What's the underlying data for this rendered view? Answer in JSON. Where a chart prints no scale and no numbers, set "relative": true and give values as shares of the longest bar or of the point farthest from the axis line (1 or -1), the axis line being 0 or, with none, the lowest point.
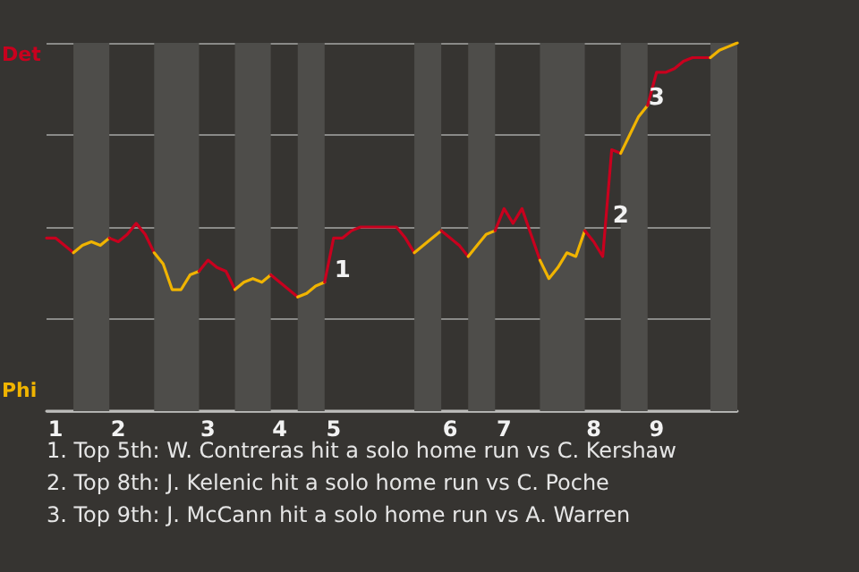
{
  "chart_data": {
    "type": "line",
    "relative": true,
    "categories": [
      null,
      "1",
      null,
      null,
      null,
      null,
      null,
      null,
      "2",
      null,
      null,
      null,
      null,
      null,
      null,
      null,
      null,
      null,
      "3",
      null,
      null,
      null,
      null,
      null,
      null,
      null,
      "4",
      null,
      null,
      null,
      null,
      null,
      "5",
      null,
      null,
      null,
      null,
      null,
      null,
      null,
      null,
      null,
      null,
      null,
      null,
      "6",
      null,
      null,
      null,
      null,
      null,
      "7",
      null,
      null,
      null,
      null,
      null,
      null,
      null,
      null,
      null,
      "8",
      null,
      null,
      null,
      null,
      null,
      null,
      "9",
      null,
      null,
      null,
      null,
      null,
      null,
      null,
      null,
      null
    ],
    "series": [
      {
        "color": "#c8001e",
        "values": [
          0.47,
          0.47,
          0.45,
          0.43,
          null,
          null,
          null,
          null,
          null,
          null,
          null,
          null,
          null,
          null,
          null,
          null,
          null,
          null,
          null,
          null,
          null,
          null,
          null,
          null,
          null,
          null,
          null,
          null,
          null,
          null,
          null,
          null,
          null,
          null,
          null,
          null,
          null,
          null,
          null,
          null,
          null,
          null,
          null,
          null,
          null,
          null,
          null,
          null,
          null,
          null,
          null,
          null,
          null,
          null,
          null,
          null,
          null,
          null,
          null,
          null,
          null,
          null,
          null,
          null,
          null,
          null,
          null,
          null,
          null,
          null,
          null,
          null,
          null,
          null,
          null,
          null,
          null,
          null
        ]
      },
      {
        "color": "#f0b400",
        "values": [
          null,
          null,
          null,
          0.43,
          0.45,
          0.46,
          0.45,
          0.47,
          null,
          null,
          null,
          null,
          null,
          null,
          null,
          null,
          null,
          null,
          null,
          null,
          null,
          null,
          null,
          null,
          null,
          null,
          null,
          null,
          null,
          null,
          null,
          null,
          null,
          null,
          null,
          null,
          null,
          null,
          null,
          null,
          null,
          null,
          null,
          null,
          null,
          null,
          null,
          null,
          null,
          null,
          null,
          null,
          null,
          null,
          null,
          null,
          null,
          null,
          null,
          null,
          null,
          null,
          null,
          null,
          null,
          null,
          null,
          null,
          null,
          null,
          null,
          null,
          null,
          null,
          null,
          null,
          null,
          null
        ]
      },
      {
        "color": "#c8001e",
        "values": [
          null,
          null,
          null,
          null,
          null,
          null,
          null,
          0.47,
          0.46,
          0.48,
          0.51,
          0.48,
          0.43,
          null,
          null,
          null,
          null,
          null,
          null,
          null,
          null,
          null,
          null,
          null,
          null,
          null,
          null,
          null,
          null,
          null,
          null,
          null,
          null,
          null,
          null,
          null,
          null,
          null,
          null,
          null,
          null,
          null,
          null,
          null,
          null,
          null,
          null,
          null,
          null,
          null,
          null,
          null,
          null,
          null,
          null,
          null,
          null,
          null,
          null,
          null,
          null,
          null,
          null,
          null,
          null,
          null,
          null,
          null,
          null,
          null,
          null,
          null,
          null,
          null,
          null,
          null,
          null,
          null
        ]
      },
      {
        "color": "#f0b400",
        "values": [
          null,
          null,
          null,
          null,
          null,
          null,
          null,
          null,
          null,
          null,
          null,
          null,
          0.43,
          0.4,
          0.33,
          0.33,
          0.37,
          0.38,
          null,
          null,
          null,
          null,
          null,
          null,
          null,
          null,
          null,
          null,
          null,
          null,
          null,
          null,
          null,
          null,
          null,
          null,
          null,
          null,
          null,
          null,
          null,
          null,
          null,
          null,
          null,
          null,
          null,
          null,
          null,
          null,
          null,
          null,
          null,
          null,
          null,
          null,
          null,
          null,
          null,
          null,
          null,
          null,
          null,
          null,
          null,
          null,
          null,
          null,
          null,
          null,
          null,
          null,
          null,
          null,
          null,
          null,
          null,
          null
        ]
      },
      {
        "color": "#c8001e",
        "values": [
          null,
          null,
          null,
          null,
          null,
          null,
          null,
          null,
          null,
          null,
          null,
          null,
          null,
          null,
          null,
          null,
          null,
          0.38,
          0.41,
          0.39,
          0.38,
          0.33,
          null,
          null,
          null,
          null,
          null,
          null,
          null,
          null,
          null,
          null,
          null,
          null,
          null,
          null,
          null,
          null,
          null,
          null,
          null,
          null,
          null,
          null,
          null,
          null,
          null,
          null,
          null,
          null,
          null,
          null,
          null,
          null,
          null,
          null,
          null,
          null,
          null,
          null,
          null,
          null,
          null,
          null,
          null,
          null,
          null,
          null,
          null,
          null,
          null,
          null,
          null,
          null,
          null,
          null,
          null,
          null
        ]
      },
      {
        "color": "#f0b400",
        "values": [
          null,
          null,
          null,
          null,
          null,
          null,
          null,
          null,
          null,
          null,
          null,
          null,
          null,
          null,
          null,
          null,
          null,
          null,
          null,
          null,
          null,
          0.33,
          0.35,
          0.36,
          0.35,
          0.37,
          null,
          null,
          null,
          null,
          null,
          null,
          null,
          null,
          null,
          null,
          null,
          null,
          null,
          null,
          null,
          null,
          null,
          null,
          null,
          null,
          null,
          null,
          null,
          null,
          null,
          null,
          null,
          null,
          null,
          null,
          null,
          null,
          null,
          null,
          null,
          null,
          null,
          null,
          null,
          null,
          null,
          null,
          null,
          null,
          null,
          null,
          null,
          null,
          null,
          null,
          null,
          null
        ]
      },
      {
        "color": "#c8001e",
        "values": [
          null,
          null,
          null,
          null,
          null,
          null,
          null,
          null,
          null,
          null,
          null,
          null,
          null,
          null,
          null,
          null,
          null,
          null,
          null,
          null,
          null,
          null,
          null,
          null,
          null,
          0.37,
          0.35,
          0.33,
          0.31,
          null,
          null,
          null,
          null,
          null,
          null,
          null,
          null,
          null,
          null,
          null,
          null,
          null,
          null,
          null,
          null,
          null,
          null,
          null,
          null,
          null,
          null,
          null,
          null,
          null,
          null,
          null,
          null,
          null,
          null,
          null,
          null,
          null,
          null,
          null,
          null,
          null,
          null,
          null,
          null,
          null,
          null,
          null,
          null,
          null,
          null,
          null,
          null,
          null
        ]
      },
      {
        "color": "#f0b400",
        "values": [
          null,
          null,
          null,
          null,
          null,
          null,
          null,
          null,
          null,
          null,
          null,
          null,
          null,
          null,
          null,
          null,
          null,
          null,
          null,
          null,
          null,
          null,
          null,
          null,
          null,
          null,
          null,
          null,
          0.31,
          0.32,
          0.34,
          0.35,
          null,
          null,
          null,
          null,
          null,
          null,
          null,
          null,
          null,
          null,
          null,
          null,
          null,
          null,
          null,
          null,
          null,
          null,
          null,
          null,
          null,
          null,
          null,
          null,
          null,
          null,
          null,
          null,
          null,
          null,
          null,
          null,
          null,
          null,
          null,
          null,
          null,
          null,
          null,
          null,
          null,
          null,
          null,
          null,
          null,
          null
        ]
      },
      {
        "color": "#c8001e",
        "values": [
          null,
          null,
          null,
          null,
          null,
          null,
          null,
          null,
          null,
          null,
          null,
          null,
          null,
          null,
          null,
          null,
          null,
          null,
          null,
          null,
          null,
          null,
          null,
          null,
          null,
          null,
          null,
          null,
          null,
          null,
          null,
          0.35,
          0.47,
          0.47,
          0.49,
          0.5,
          0.5,
          0.5,
          0.5,
          0.5,
          0.47,
          0.43,
          null,
          null,
          null,
          null,
          null,
          null,
          null,
          null,
          null,
          null,
          null,
          null,
          null,
          null,
          null,
          null,
          null,
          null,
          null,
          null,
          null,
          null,
          null,
          null,
          null,
          null,
          null,
          null,
          null,
          null,
          null,
          null,
          null,
          null,
          null,
          null
        ]
      },
      {
        "color": "#f0b400",
        "values": [
          null,
          null,
          null,
          null,
          null,
          null,
          null,
          null,
          null,
          null,
          null,
          null,
          null,
          null,
          null,
          null,
          null,
          null,
          null,
          null,
          null,
          null,
          null,
          null,
          null,
          null,
          null,
          null,
          null,
          null,
          null,
          null,
          null,
          null,
          null,
          null,
          null,
          null,
          null,
          null,
          null,
          0.43,
          0.45,
          0.47,
          0.49,
          null,
          null,
          null,
          null,
          null,
          null,
          null,
          null,
          null,
          null,
          null,
          null,
          null,
          null,
          null,
          null,
          null,
          null,
          null,
          null,
          null,
          null,
          null,
          null,
          null,
          null,
          null,
          null,
          null,
          null,
          null,
          null,
          null
        ]
      },
      {
        "color": "#c8001e",
        "values": [
          null,
          null,
          null,
          null,
          null,
          null,
          null,
          null,
          null,
          null,
          null,
          null,
          null,
          null,
          null,
          null,
          null,
          null,
          null,
          null,
          null,
          null,
          null,
          null,
          null,
          null,
          null,
          null,
          null,
          null,
          null,
          null,
          null,
          null,
          null,
          null,
          null,
          null,
          null,
          null,
          null,
          null,
          null,
          null,
          0.49,
          0.47,
          0.45,
          0.42,
          null,
          null,
          null,
          null,
          null,
          null,
          null,
          null,
          null,
          null,
          null,
          null,
          null,
          null,
          null,
          null,
          null,
          null,
          null,
          null,
          null,
          null,
          null,
          null,
          null,
          null,
          null,
          null,
          null,
          null
        ]
      },
      {
        "color": "#f0b400",
        "values": [
          null,
          null,
          null,
          null,
          null,
          null,
          null,
          null,
          null,
          null,
          null,
          null,
          null,
          null,
          null,
          null,
          null,
          null,
          null,
          null,
          null,
          null,
          null,
          null,
          null,
          null,
          null,
          null,
          null,
          null,
          null,
          null,
          null,
          null,
          null,
          null,
          null,
          null,
          null,
          null,
          null,
          null,
          null,
          null,
          null,
          null,
          null,
          0.42,
          0.45,
          0.48,
          0.49,
          null,
          null,
          null,
          null,
          null,
          null,
          null,
          null,
          null,
          null,
          null,
          null,
          null,
          null,
          null,
          null,
          null,
          null,
          null,
          null,
          null,
          null,
          null,
          null,
          null,
          null,
          null
        ]
      },
      {
        "color": "#c8001e",
        "values": [
          null,
          null,
          null,
          null,
          null,
          null,
          null,
          null,
          null,
          null,
          null,
          null,
          null,
          null,
          null,
          null,
          null,
          null,
          null,
          null,
          null,
          null,
          null,
          null,
          null,
          null,
          null,
          null,
          null,
          null,
          null,
          null,
          null,
          null,
          null,
          null,
          null,
          null,
          null,
          null,
          null,
          null,
          null,
          null,
          null,
          null,
          null,
          null,
          null,
          null,
          0.49,
          0.55,
          0.51,
          0.55,
          0.48,
          0.41,
          null,
          null,
          null,
          null,
          null,
          null,
          null,
          null,
          null,
          null,
          null,
          null,
          null,
          null,
          null,
          null,
          null,
          null,
          null,
          null,
          null,
          null
        ]
      },
      {
        "color": "#f0b400",
        "values": [
          null,
          null,
          null,
          null,
          null,
          null,
          null,
          null,
          null,
          null,
          null,
          null,
          null,
          null,
          null,
          null,
          null,
          null,
          null,
          null,
          null,
          null,
          null,
          null,
          null,
          null,
          null,
          null,
          null,
          null,
          null,
          null,
          null,
          null,
          null,
          null,
          null,
          null,
          null,
          null,
          null,
          null,
          null,
          null,
          null,
          null,
          null,
          null,
          null,
          null,
          null,
          null,
          null,
          null,
          null,
          0.41,
          0.36,
          0.39,
          0.43,
          0.42,
          0.49,
          null,
          null,
          null,
          null,
          null,
          null,
          null,
          null,
          null,
          null,
          null,
          null,
          null,
          null,
          null,
          null,
          null
        ]
      },
      {
        "color": "#c8001e",
        "values": [
          null,
          null,
          null,
          null,
          null,
          null,
          null,
          null,
          null,
          null,
          null,
          null,
          null,
          null,
          null,
          null,
          null,
          null,
          null,
          null,
          null,
          null,
          null,
          null,
          null,
          null,
          null,
          null,
          null,
          null,
          null,
          null,
          null,
          null,
          null,
          null,
          null,
          null,
          null,
          null,
          null,
          null,
          null,
          null,
          null,
          null,
          null,
          null,
          null,
          null,
          null,
          null,
          null,
          null,
          null,
          null,
          null,
          null,
          null,
          null,
          0.49,
          0.46,
          0.42,
          0.71,
          0.7,
          null,
          null,
          null,
          null,
          null,
          null,
          null,
          null,
          null,
          null,
          null,
          null,
          null
        ]
      },
      {
        "color": "#f0b400",
        "values": [
          null,
          null,
          null,
          null,
          null,
          null,
          null,
          null,
          null,
          null,
          null,
          null,
          null,
          null,
          null,
          null,
          null,
          null,
          null,
          null,
          null,
          null,
          null,
          null,
          null,
          null,
          null,
          null,
          null,
          null,
          null,
          null,
          null,
          null,
          null,
          null,
          null,
          null,
          null,
          null,
          null,
          null,
          null,
          null,
          null,
          null,
          null,
          null,
          null,
          null,
          null,
          null,
          null,
          null,
          null,
          null,
          null,
          null,
          null,
          null,
          null,
          null,
          null,
          null,
          0.7,
          0.75,
          0.8,
          0.83,
          null,
          null,
          null,
          null,
          null,
          null,
          null,
          null,
          null,
          null
        ]
      },
      {
        "color": "#c8001e",
        "values": [
          null,
          null,
          null,
          null,
          null,
          null,
          null,
          null,
          null,
          null,
          null,
          null,
          null,
          null,
          null,
          null,
          null,
          null,
          null,
          null,
          null,
          null,
          null,
          null,
          null,
          null,
          null,
          null,
          null,
          null,
          null,
          null,
          null,
          null,
          null,
          null,
          null,
          null,
          null,
          null,
          null,
          null,
          null,
          null,
          null,
          null,
          null,
          null,
          null,
          null,
          null,
          null,
          null,
          null,
          null,
          null,
          null,
          null,
          null,
          null,
          null,
          null,
          null,
          null,
          null,
          null,
          null,
          0.83,
          0.92,
          0.92,
          0.93,
          0.95,
          0.96,
          0.96,
          0.96,
          null,
          null,
          null
        ]
      },
      {
        "color": "#f0b400",
        "values": [
          null,
          null,
          null,
          null,
          null,
          null,
          null,
          null,
          null,
          null,
          null,
          null,
          null,
          null,
          null,
          null,
          null,
          null,
          null,
          null,
          null,
          null,
          null,
          null,
          null,
          null,
          null,
          null,
          null,
          null,
          null,
          null,
          null,
          null,
          null,
          null,
          null,
          null,
          null,
          null,
          null,
          null,
          null,
          null,
          null,
          null,
          null,
          null,
          null,
          null,
          null,
          null,
          null,
          null,
          null,
          null,
          null,
          null,
          null,
          null,
          null,
          null,
          null,
          null,
          null,
          null,
          null,
          null,
          null,
          null,
          null,
          null,
          null,
          null,
          0.96,
          0.98,
          0.99,
          1
        ]
      }
    ],
    "grid": "y",
    "annotations": [
      "Det",
      "Phi",
      "1",
      "2",
      "3",
      "1. Top 5th: W. Contreras hit a solo home run vs C. Kershaw",
      "2. Top 8th: J. Kelenic hit a solo home run vs C. Poche",
      "3. Top 9th: J. McCann hit a solo home run vs A. Warren"
    ]
  }
}
